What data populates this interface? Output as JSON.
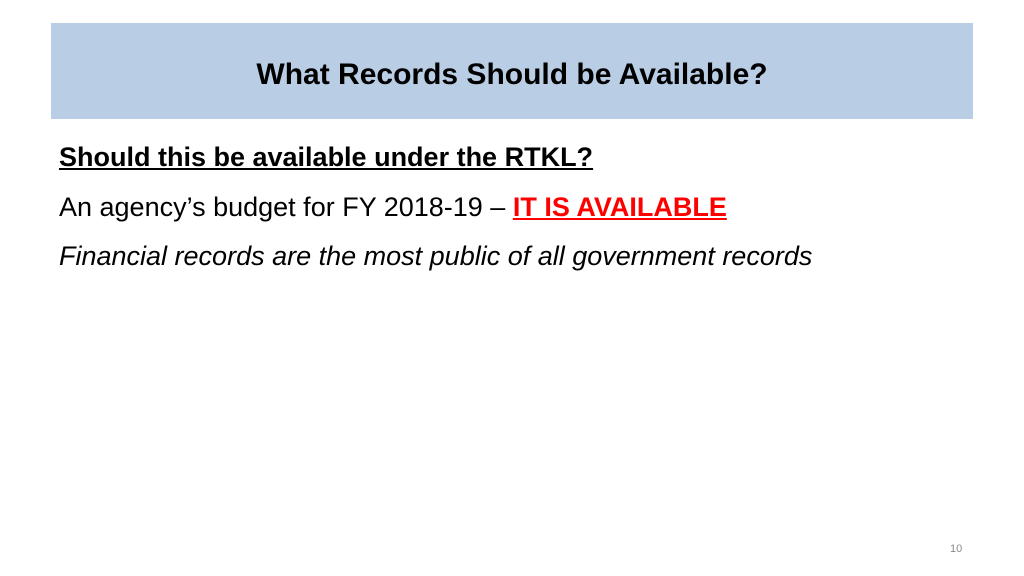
{
  "slide": {
    "title": "What Records Should be Available?",
    "question": "Should this be available under the RTKL?",
    "example_prefix": "An agency’s budget for FY 2018-19 – ",
    "answer": "IT IS AVAILABLE",
    "answer_color": "#ff0000",
    "explanation": "Financial records are the most public of all government records",
    "page_number": "10",
    "banner_color": "#b9cde4"
  }
}
